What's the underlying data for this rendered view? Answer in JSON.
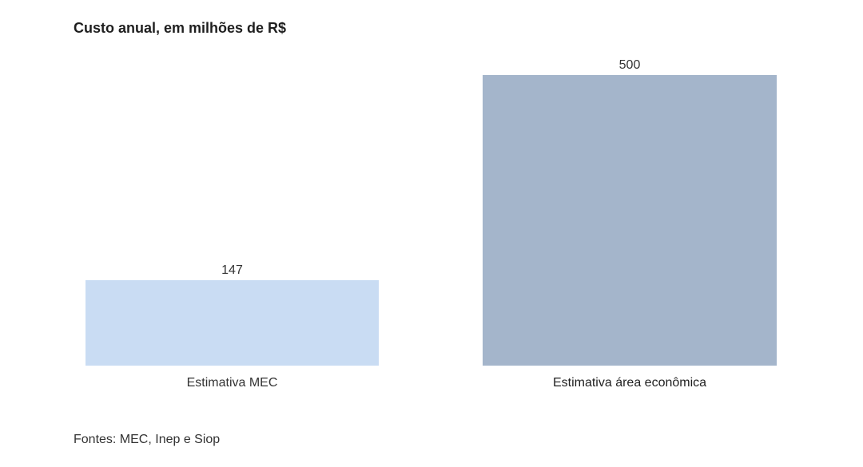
{
  "chart_data": {
    "type": "bar",
    "title": "Custo anual, em milhões de R$",
    "categories": [
      "Estimativa MEC",
      "Estimativa área econômica"
    ],
    "values": [
      147,
      500
    ],
    "colors": [
      "#c9dcf3",
      "#a4b5cb"
    ],
    "ylim": [
      0,
      500
    ],
    "xlabel": "",
    "ylabel": "",
    "grid": false,
    "data_labels": true,
    "source": "Fontes: MEC, Inep e Siop"
  }
}
